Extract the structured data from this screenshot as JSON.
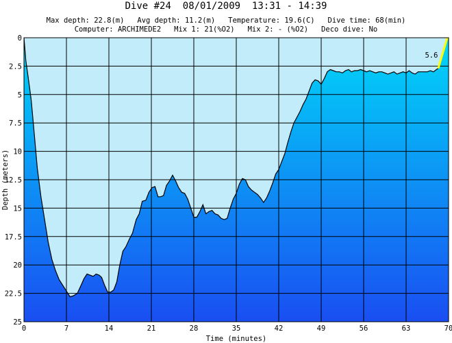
{
  "header": {
    "title": "Dive #24  08/01/2009  13:31 - 14:39",
    "line1": "Max depth: 22.8(m)   Avg depth: 11.2(m)   Temperature: 19.6(C)   Dive time: 68(min)",
    "line2": "Computer: ARCHIMEDE2   Mix 1: 21(%O2)   Mix 2: - (%O2)   Deco dive: No"
  },
  "chart_data": {
    "type": "area",
    "xlabel": "Time (minutes)",
    "ylabel": "Depth (meters)",
    "xlim": [
      0,
      70
    ],
    "ylim": [
      0,
      25
    ],
    "y_inverted": true,
    "grid": true,
    "x_ticks": [
      "0",
      "7",
      "14",
      "21",
      "28",
      "35",
      "42",
      "49",
      "56",
      "63",
      "70"
    ],
    "y_ticks": [
      "0",
      "2.5",
      "5",
      "7.5",
      "10",
      "12.5",
      "15",
      "17.5",
      "20",
      "22.5",
      "25"
    ],
    "annotation": "5.6",
    "ascent_segment": {
      "x": [
        68.3,
        69.8
      ],
      "y": [
        2.7,
        0.0
      ]
    },
    "colors": {
      "surface_area": "#c2ecfa",
      "water_top": "#00d7f8",
      "water_bottom": "#1a4ef2",
      "ascent_line": "#ffff00",
      "grid": "#000000",
      "profile": "#000000"
    },
    "x": [
      0,
      0.3,
      0.7,
      1.2,
      1.7,
      2.2,
      2.8,
      3.4,
      4.0,
      4.6,
      5.2,
      5.8,
      6.4,
      7.0,
      7.6,
      8.2,
      8.8,
      9.4,
      9.9,
      10.4,
      10.9,
      11.4,
      11.9,
      12.4,
      12.8,
      13.3,
      13.8,
      14.3,
      14.8,
      15.3,
      15.8,
      16.3,
      16.8,
      17.4,
      17.9,
      18.5,
      19.0,
      19.5,
      20.1,
      20.6,
      21.1,
      21.6,
      22.1,
      22.5,
      23.0,
      23.5,
      24.0,
      24.5,
      25.0,
      25.5,
      26.0,
      26.5,
      27.0,
      27.5,
      28.0,
      28.5,
      29.0,
      29.5,
      30.0,
      30.5,
      31.0,
      31.5,
      32.0,
      32.5,
      33.0,
      33.5,
      34.0,
      34.5,
      35.0,
      35.5,
      36.0,
      36.5,
      37.0,
      37.5,
      38.0,
      38.5,
      39.0,
      39.5,
      40.0,
      40.5,
      41.0,
      41.5,
      42.0,
      42.5,
      43.0,
      43.5,
      44.0,
      44.5,
      45.0,
      45.5,
      46.0,
      46.5,
      47.0,
      47.5,
      48.0,
      48.5,
      49.0,
      49.5,
      50.0,
      50.5,
      51.0,
      51.5,
      52.0,
      52.5,
      53.0,
      53.5,
      54.0,
      54.5,
      55.0,
      55.5,
      56.0,
      56.5,
      57.0,
      57.5,
      58.0,
      58.5,
      59.0,
      59.5,
      60.0,
      60.5,
      61.0,
      61.5,
      62.0,
      62.5,
      63.0,
      63.5,
      64.0,
      64.5,
      65.0,
      65.5,
      66.0,
      66.5,
      67.0,
      67.5,
      68.0,
      68.3
    ],
    "y": [
      0.0,
      2.0,
      3.5,
      5.5,
      8.5,
      11.5,
      14.0,
      16.0,
      18.0,
      19.5,
      20.5,
      21.3,
      21.8,
      22.3,
      22.8,
      22.7,
      22.5,
      21.8,
      21.2,
      20.8,
      20.9,
      21.0,
      20.8,
      20.9,
      21.1,
      21.8,
      22.4,
      22.4,
      22.2,
      21.5,
      20.0,
      18.8,
      18.4,
      17.7,
      17.2,
      16.0,
      15.5,
      14.4,
      14.3,
      13.6,
      13.2,
      13.1,
      14.0,
      14.0,
      13.9,
      13.0,
      12.6,
      12.1,
      12.6,
      13.2,
      13.6,
      13.7,
      14.2,
      15.0,
      15.8,
      15.8,
      15.3,
      14.7,
      15.5,
      15.3,
      15.2,
      15.5,
      15.6,
      15.9,
      16.0,
      15.9,
      15.0,
      14.2,
      13.7,
      12.9,
      12.4,
      12.5,
      13.1,
      13.4,
      13.6,
      13.8,
      14.1,
      14.5,
      14.1,
      13.5,
      12.8,
      12.0,
      11.6,
      10.9,
      10.2,
      9.2,
      8.3,
      7.5,
      7.0,
      6.5,
      5.9,
      5.4,
      4.7,
      4.0,
      3.7,
      3.8,
      4.1,
      3.6,
      3.0,
      2.8,
      2.9,
      3.0,
      3.0,
      3.1,
      2.9,
      2.8,
      3.0,
      2.9,
      2.9,
      2.8,
      2.9,
      3.0,
      2.9,
      3.0,
      3.1,
      3.0,
      3.0,
      3.1,
      3.2,
      3.1,
      3.0,
      3.2,
      3.1,
      3.0,
      3.1,
      2.9,
      3.1,
      3.2,
      3.0,
      3.0,
      3.0,
      3.0,
      2.9,
      3.0,
      2.8,
      2.7
    ]
  }
}
